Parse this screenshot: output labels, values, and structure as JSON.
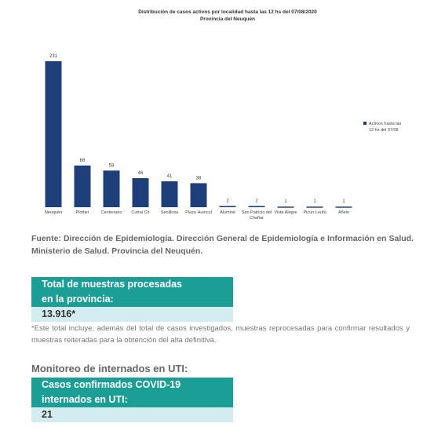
{
  "chart_data": {
    "type": "bar",
    "title": "Distribución de casos activos por localidad hasta las 12 hs del  07/08/2020",
    "subtitle": "Provincia del Neuquén",
    "categories": [
      "Neuquén",
      "Plottier",
      "Centenario",
      "Cutral Có",
      "Senillosa",
      "Plaza Huincul",
      "Aluminé",
      "San Patricio del Chañar",
      "Vista Alegre",
      "Picún Leufú",
      "Añelo"
    ],
    "series": [
      {
        "name": "Activos hasta las 12 hs del 07/08",
        "color": "#1f3f7a",
        "values": [
          231,
          66,
          58,
          46,
          41,
          38,
          2,
          2,
          1,
          1,
          1
        ]
      }
    ],
    "legend": "right"
  },
  "source": "Fuente: Dirección de Epidemiología. Dirección General de Epidemiología e Información en Salud. Ministerio de Salud. Provincia del Neuquén.",
  "samples_box": {
    "title_lines": [
      "Total de muestras procesadas",
      "en la provincia:"
    ],
    "value": "13.916*"
  },
  "note": "*Este total incluye, además del total de casos investigados, muestras reprocesadas para confirmar resultados y muestras reiteradas para la obtención del alta definitiva.",
  "uti_heading": "Monitoreo de internados en UTI:",
  "uti_box": {
    "title_lines": [
      "Casos confirmados COVID-19",
      "internados en UTI:"
    ],
    "value": "21"
  }
}
